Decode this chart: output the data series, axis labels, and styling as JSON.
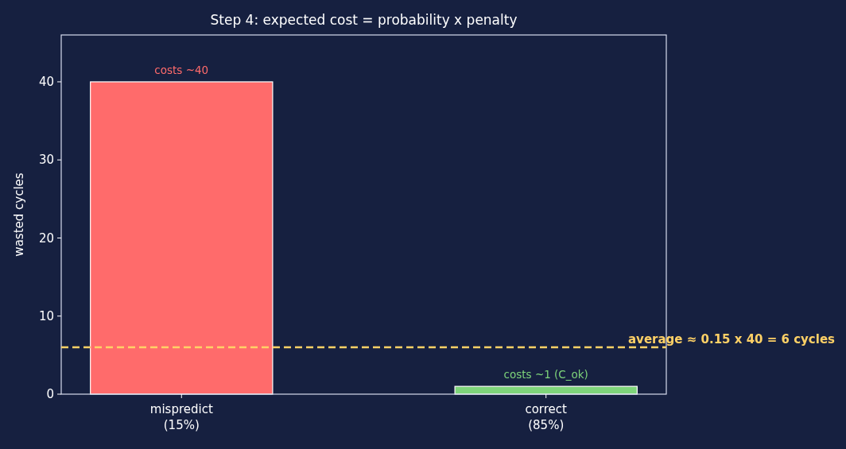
{
  "chart_data": {
    "type": "bar",
    "title": "Step 4: expected cost = probability x penalty",
    "ylabel": "wasted cycles",
    "categories": [
      "mispredict\n(15%)",
      "correct\n(85%)"
    ],
    "values": [
      40,
      1
    ],
    "colors": [
      "#ff6b6b",
      "#7ed47a"
    ],
    "ylim": [
      0,
      46
    ],
    "yticks": [
      0,
      10,
      20,
      30,
      40
    ],
    "annotations": [
      {
        "text": "costs ~40",
        "x": "mispredict\n(15%)",
        "y": 40
      },
      {
        "text": "costs ~1 (C_ok)",
        "x": "correct\n(85%)",
        "y": 1
      }
    ],
    "ref_lines": [
      {
        "axis": "y",
        "value": 6,
        "label": "average ≈ 0.15 x 40 = 6 cycles",
        "color": "#ffd166",
        "line_style": "dashed"
      }
    ],
    "grid": false
  }
}
